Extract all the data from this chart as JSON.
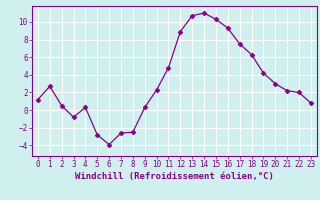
{
  "x": [
    0,
    1,
    2,
    3,
    4,
    5,
    6,
    7,
    8,
    9,
    10,
    11,
    12,
    13,
    14,
    15,
    16,
    17,
    18,
    19,
    20,
    21,
    22,
    23
  ],
  "y": [
    1.2,
    2.7,
    0.5,
    -0.8,
    0.3,
    -2.8,
    -3.9,
    -2.6,
    -2.5,
    0.3,
    2.3,
    4.8,
    8.9,
    10.7,
    11.0,
    10.3,
    9.3,
    7.5,
    6.3,
    4.2,
    3.0,
    2.2,
    2.0,
    0.8
  ],
  "line_color": "#880088",
  "marker": "D",
  "marker_size": 2.5,
  "bg_color": "#d0f0f0",
  "grid_color": "#ffffff",
  "xlabel": "Windchill (Refroidissement éolien,°C)",
  "xlim": [
    -0.5,
    23.5
  ],
  "ylim": [
    -5.2,
    11.8
  ],
  "yticks": [
    -4,
    -2,
    0,
    2,
    4,
    6,
    8,
    10
  ],
  "xticks": [
    0,
    1,
    2,
    3,
    4,
    5,
    6,
    7,
    8,
    9,
    10,
    11,
    12,
    13,
    14,
    15,
    16,
    17,
    18,
    19,
    20,
    21,
    22,
    23
  ],
  "tick_color": "#880088",
  "label_color": "#880088",
  "xlabel_fontsize": 6.5,
  "tick_fontsize": 5.5
}
